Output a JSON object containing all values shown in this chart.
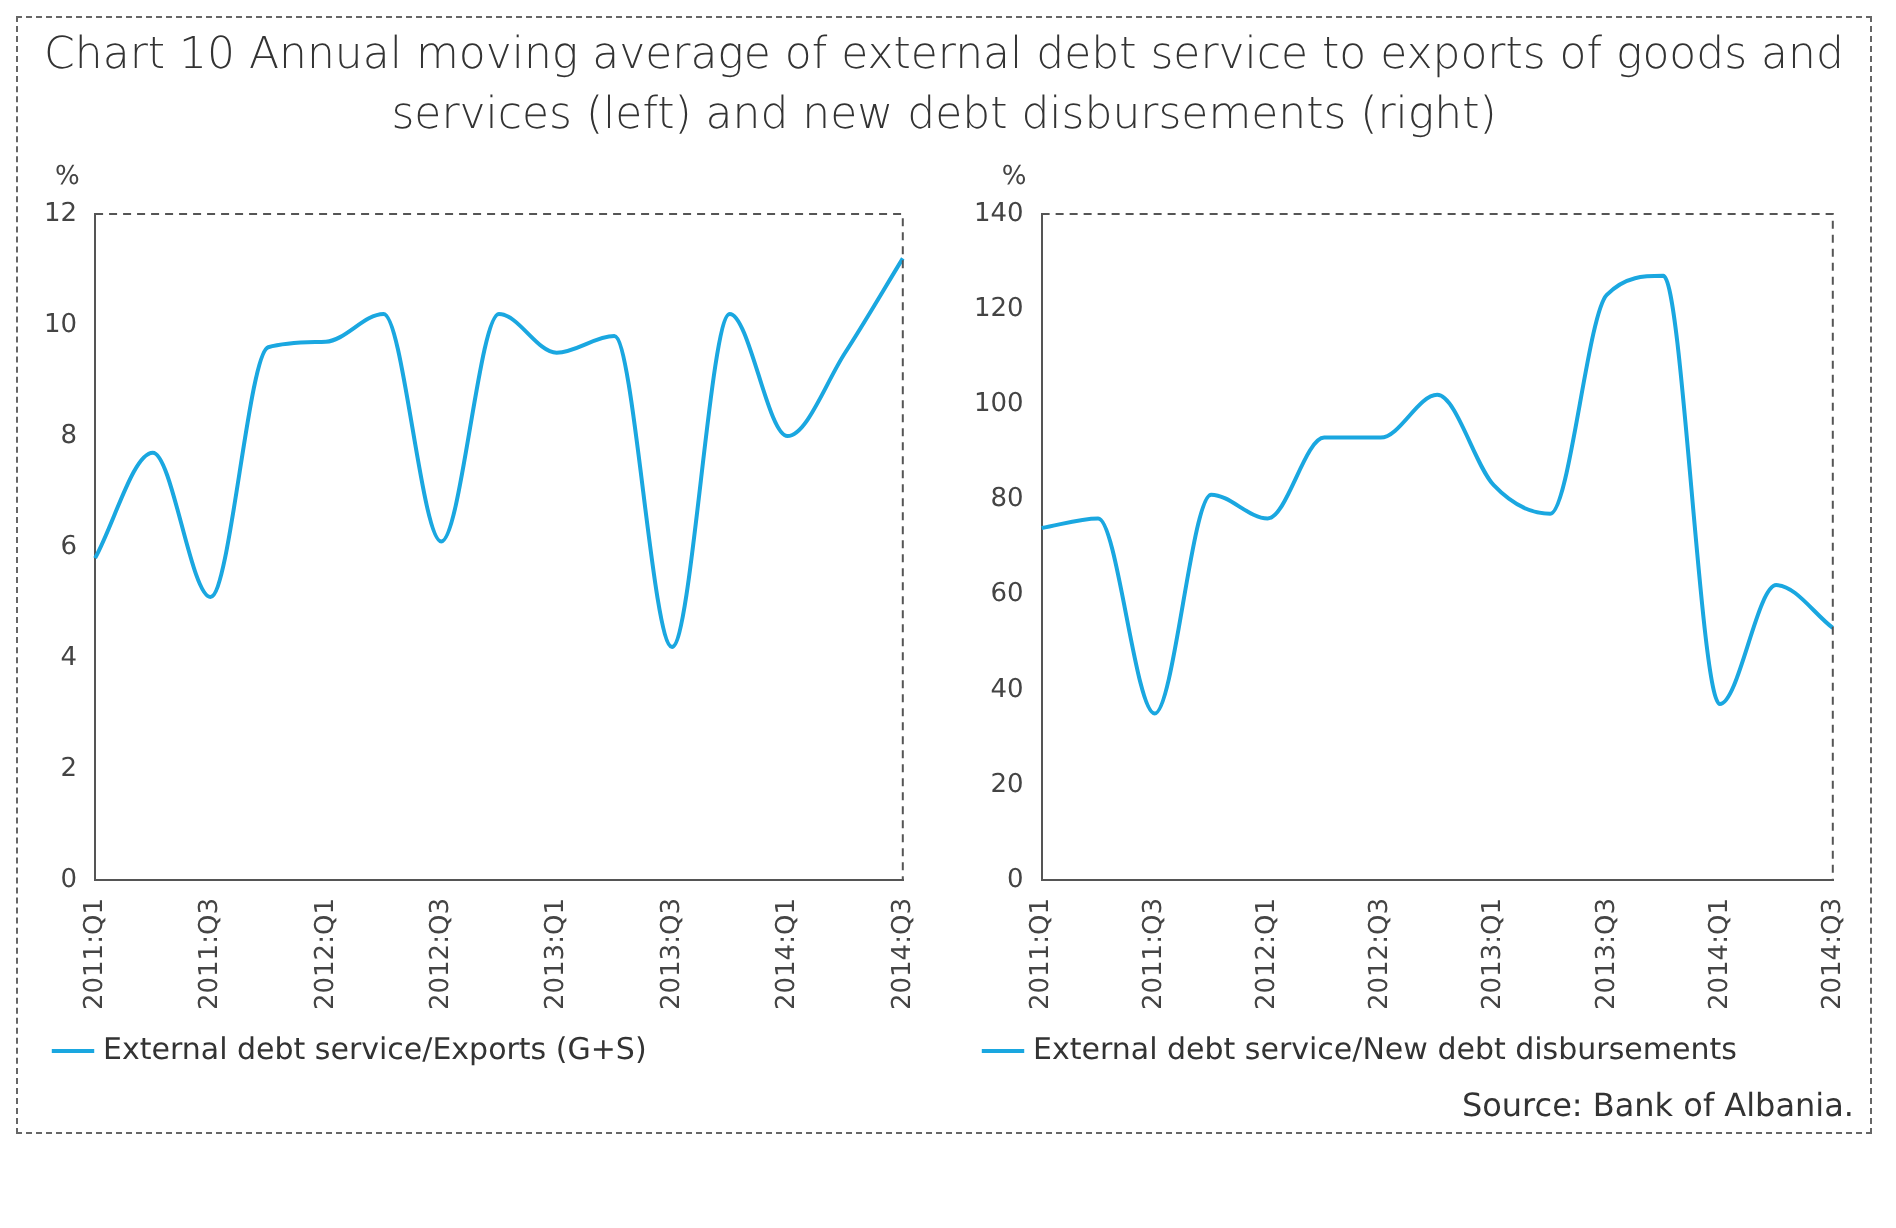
{
  "chart_data": [
    {
      "type": "line",
      "title": "Chart 10 Annual moving average of external debt service to exports of goods and services (left) and new debt disbursements (right)",
      "ylabel": "%",
      "categories": [
        "2011:Q1",
        null,
        "2011:Q3",
        null,
        "2012:Q1",
        null,
        "2012:Q3",
        null,
        "2013:Q1",
        null,
        "2013:Q3",
        null,
        "2014:Q1",
        null,
        "2014:Q3"
      ],
      "series": [
        {
          "name": "External debt service/Exports (G+S)",
          "color": "#1aa7e0",
          "values": [
            5.8,
            7.7,
            5.1,
            9.6,
            9.7,
            10.2,
            6.1,
            10.2,
            9.5,
            9.8,
            4.2,
            10.2,
            8.0,
            9.5,
            11.2
          ]
        }
      ],
      "ylim": [
        0,
        12
      ],
      "yticks": [
        0,
        2,
        4,
        6,
        8,
        10,
        12
      ],
      "grid": false,
      "legend": "bottom",
      "marker": "none"
    },
    {
      "type": "line",
      "ylabel": "%",
      "categories": [
        "2011:Q1",
        null,
        "2011:Q3",
        null,
        "2012:Q1",
        null,
        "2012:Q3",
        null,
        "2013:Q1",
        null,
        "2013:Q3",
        null,
        "2014:Q1",
        null,
        "2014:Q3"
      ],
      "series": [
        {
          "name": "External debt service/New debt disbursements",
          "color": "#1aa7e0",
          "values": [
            74,
            76,
            35,
            81,
            76,
            93,
            93,
            102,
            83,
            77,
            123,
            127,
            37,
            62,
            53
          ]
        }
      ],
      "ylim": [
        0,
        140
      ],
      "yticks": [
        0,
        20,
        40,
        60,
        80,
        100,
        120,
        140
      ],
      "grid": false,
      "legend": "bottom",
      "marker": "none",
      "annotations": [
        "Source: Bank of Albania."
      ]
    }
  ]
}
